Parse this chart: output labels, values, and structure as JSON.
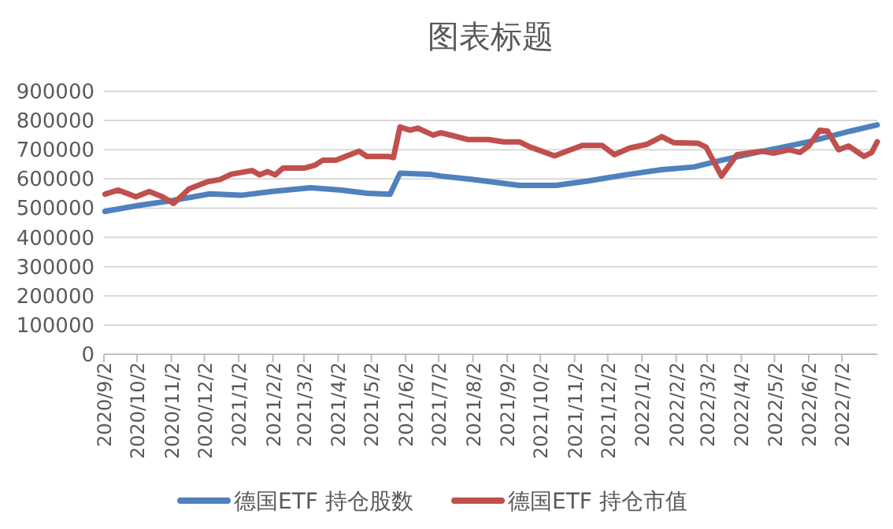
{
  "chart_data": {
    "type": "line",
    "title": "图表标题",
    "xlim": [
      "2020-09-02",
      "2022-08-03"
    ],
    "ylim": [
      0,
      900000
    ],
    "yticks": [
      0,
      100000,
      200000,
      300000,
      400000,
      500000,
      600000,
      700000,
      800000,
      900000
    ],
    "xticks": [
      {
        "value": "2020-09-02",
        "label": "2020/9/2"
      },
      {
        "value": "2020-10-02",
        "label": "2020/10/2"
      },
      {
        "value": "2020-11-02",
        "label": "2020/11/2"
      },
      {
        "value": "2020-12-02",
        "label": "2020/12/2"
      },
      {
        "value": "2021-01-02",
        "label": "2021/1/2"
      },
      {
        "value": "2021-02-02",
        "label": "2021/2/2"
      },
      {
        "value": "2021-03-02",
        "label": "2021/3/2"
      },
      {
        "value": "2021-04-02",
        "label": "2021/4/2"
      },
      {
        "value": "2021-05-02",
        "label": "2021/5/2"
      },
      {
        "value": "2021-06-02",
        "label": "2021/6/2"
      },
      {
        "value": "2021-07-02",
        "label": "2021/7/2"
      },
      {
        "value": "2021-08-02",
        "label": "2021/8/2"
      },
      {
        "value": "2021-09-02",
        "label": "2021/9/2"
      },
      {
        "value": "2021-10-02",
        "label": "2021/10/2"
      },
      {
        "value": "2021-11-02",
        "label": "2021/11/2"
      },
      {
        "value": "2021-12-02",
        "label": "2021/12/2"
      },
      {
        "value": "2022-01-02",
        "label": "2022/1/2"
      },
      {
        "value": "2022-02-02",
        "label": "2022/2/2"
      },
      {
        "value": "2022-03-02",
        "label": "2022/3/2"
      },
      {
        "value": "2022-04-02",
        "label": "2022/4/2"
      },
      {
        "value": "2022-05-02",
        "label": "2022/5/2"
      },
      {
        "value": "2022-06-02",
        "label": "2022/6/2"
      },
      {
        "value": "2022-07-02",
        "label": "2022/7/2"
      }
    ],
    "grid": "y",
    "legend": "bottom",
    "series": [
      {
        "name": "德国ETF 持仓股数",
        "color": "#4f81bd",
        "x": [
          "2020-09-03",
          "2020-10-01",
          "2020-11-04",
          "2020-12-07",
          "2021-01-04",
          "2021-02-01",
          "2021-03-08",
          "2021-04-05",
          "2021-04-28",
          "2021-05-19",
          "2021-05-28",
          "2021-06-24",
          "2021-07-04",
          "2021-08-02",
          "2021-09-13",
          "2021-10-16",
          "2021-11-14",
          "2021-12-18",
          "2022-01-20",
          "2022-02-18",
          "2022-03-14",
          "2022-04-16",
          "2022-06-02",
          "2022-07-10",
          "2022-08-03"
        ],
        "values": [
          489000,
          508000,
          527000,
          549000,
          544000,
          557000,
          570000,
          562000,
          551000,
          548000,
          620000,
          616000,
          610000,
          598000,
          578000,
          578000,
          593000,
          614000,
          632000,
          641000,
          663000,
          691000,
          727000,
          764000,
          785000
        ]
      },
      {
        "name": "德国ETF 持仓市值",
        "color": "#c0504d",
        "x": [
          "2020-09-03",
          "2020-09-15",
          "2020-10-01",
          "2020-10-13",
          "2020-10-25",
          "2020-11-04",
          "2020-11-18",
          "2020-12-05",
          "2020-12-16",
          "2020-12-26",
          "2021-01-14",
          "2021-01-21",
          "2021-01-28",
          "2021-02-04",
          "2021-02-11",
          "2021-03-02",
          "2021-03-12",
          "2021-03-19",
          "2021-03-31",
          "2021-04-21",
          "2021-04-28",
          "2021-05-18",
          "2021-05-22",
          "2021-05-28",
          "2021-06-06",
          "2021-06-13",
          "2021-06-27",
          "2021-07-04",
          "2021-07-18",
          "2021-07-28",
          "2021-08-16",
          "2021-08-30",
          "2021-09-13",
          "2021-09-23",
          "2021-10-15",
          "2021-10-26",
          "2021-11-09",
          "2021-11-27",
          "2021-12-08",
          "2021-12-22",
          "2022-01-06",
          "2022-01-20",
          "2022-01-31",
          "2022-02-22",
          "2022-03-01",
          "2022-03-15",
          "2022-03-29",
          "2022-04-21",
          "2022-05-01",
          "2022-05-15",
          "2022-05-25",
          "2022-06-02",
          "2022-06-12",
          "2022-06-19",
          "2022-06-29",
          "2022-07-08",
          "2022-07-22",
          "2022-07-29",
          "2022-08-03"
        ],
        "values": [
          548000,
          562000,
          539000,
          557000,
          539000,
          516000,
          566000,
          591000,
          598000,
          616000,
          629000,
          614000,
          625000,
          614000,
          637000,
          637000,
          647000,
          664000,
          664000,
          695000,
          677000,
          677000,
          673000,
          778000,
          767000,
          774000,
          750000,
          758000,
          745000,
          735000,
          735000,
          727000,
          727000,
          709000,
          679000,
          695000,
          715000,
          715000,
          683000,
          706000,
          718000,
          745000,
          724000,
          722000,
          709000,
          610000,
          683000,
          695000,
          688000,
          700000,
          691000,
          713000,
          767000,
          764000,
          700000,
          713000,
          677000,
          691000,
          727000
        ]
      }
    ]
  }
}
